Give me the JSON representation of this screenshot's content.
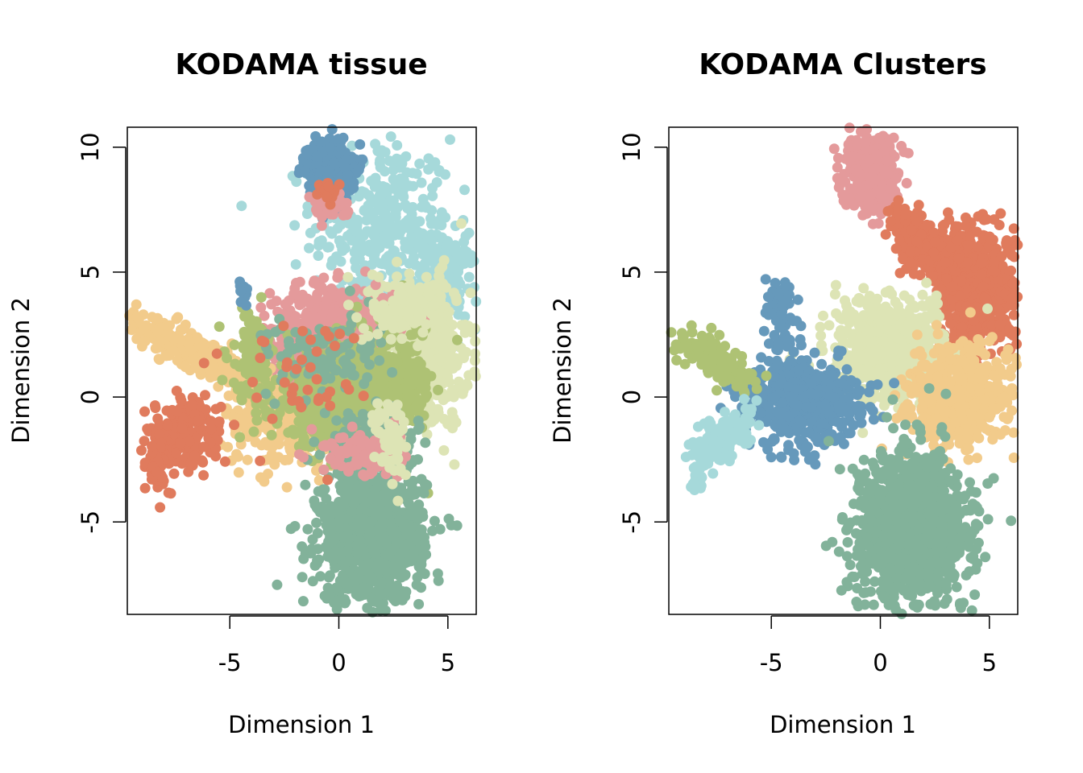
{
  "chart_data": [
    {
      "type": "scatter",
      "title": "KODAMA tissue",
      "xlabel": "Dimension 1",
      "ylabel": "Dimension 2",
      "xlim": [
        -9.7,
        6.3
      ],
      "ylim": [
        -8.7,
        10.8
      ],
      "xticks": [
        {
          "v": -5,
          "label": "-5"
        },
        {
          "v": 0,
          "label": "0"
        },
        {
          "v": 5,
          "label": "5"
        }
      ],
      "yticks": [
        {
          "v": -5,
          "label": "-5"
        },
        {
          "v": 0,
          "label": "0"
        },
        {
          "v": 5,
          "label": "5"
        },
        {
          "v": 10,
          "label": "10"
        }
      ],
      "palette": {
        "blue": "#6699bb",
        "lightblue": "#a6d9da",
        "pink": "#e49a9b",
        "orange": "#e07b5d",
        "peach": "#f2cb8b",
        "olive": "#aec274",
        "sage": "#82b29a",
        "cream": "#dde4b5"
      },
      "blobs": [
        {
          "color": "lightblue",
          "cx": 2.0,
          "cy": 6.8,
          "sx": 1.6,
          "sy": 1.8,
          "n": 360
        },
        {
          "color": "lightblue",
          "cx": 4.8,
          "cy": 4.6,
          "sx": 0.8,
          "sy": 0.9,
          "n": 160
        },
        {
          "color": "cream",
          "cx": 3.8,
          "cy": 1.8,
          "sx": 1.1,
          "sy": 1.5,
          "n": 480
        },
        {
          "color": "pink",
          "cx": -0.3,
          "cy": 2.7,
          "sx": 1.4,
          "sy": 0.9,
          "n": 460
        },
        {
          "color": "pink",
          "cx": -1.8,
          "cy": 0.6,
          "sx": 1.0,
          "sy": 0.9,
          "n": 120
        },
        {
          "color": "peach",
          "cx": -5.5,
          "cy": 1.3,
          "sx": 2.2,
          "sy": 0.35,
          "rot": -0.42,
          "n": 380
        },
        {
          "color": "peach",
          "cx": -2.5,
          "cy": -1.0,
          "sx": 1.4,
          "sy": 0.9,
          "n": 220
        },
        {
          "color": "olive",
          "cx": 0.0,
          "cy": 0.1,
          "sx": 1.5,
          "sy": 1.0,
          "n": 700
        },
        {
          "color": "olive",
          "cx": 2.6,
          "cy": 0.6,
          "sx": 0.9,
          "sy": 1.3,
          "n": 220
        },
        {
          "color": "olive",
          "cx": -4.0,
          "cy": 1.7,
          "sx": 0.5,
          "sy": 0.9,
          "n": 90
        },
        {
          "color": "orange",
          "cx": -7.2,
          "cy": -1.5,
          "sx": 0.8,
          "sy": 0.6,
          "rot": 0.7,
          "n": 240
        },
        {
          "color": "orange",
          "cx": -8.3,
          "cy": -2.8,
          "sx": 0.15,
          "sy": 0.5,
          "n": 40
        },
        {
          "color": "sage",
          "cx": 1.5,
          "cy": -5.6,
          "sx": 1.2,
          "sy": 1.3,
          "n": 900
        },
        {
          "color": "sage",
          "cx": 1.5,
          "cy": -2.0,
          "sx": 1.0,
          "sy": 0.7,
          "n": 220
        },
        {
          "color": "sage",
          "cx": -0.5,
          "cy": 1.6,
          "sx": 1.4,
          "sy": 0.8,
          "n": 110
        },
        {
          "color": "pink",
          "cx": 1.0,
          "cy": -2.3,
          "sx": 0.9,
          "sy": 0.5,
          "n": 100
        },
        {
          "color": "cream",
          "cx": 3.0,
          "cy": 3.5,
          "sx": 0.8,
          "sy": 0.6,
          "n": 120
        },
        {
          "color": "cream",
          "cx": 2.5,
          "cy": -1.8,
          "sx": 0.4,
          "sy": 1.0,
          "n": 60
        },
        {
          "color": "blue",
          "cx": -0.4,
          "cy": 9.1,
          "sx": 0.5,
          "sy": 0.55,
          "n": 420
        },
        {
          "color": "pink",
          "cx": -0.5,
          "cy": 7.8,
          "sx": 0.4,
          "sy": 0.3,
          "n": 70
        },
        {
          "color": "orange",
          "cx": -0.5,
          "cy": 8.2,
          "sx": 0.3,
          "sy": 0.25,
          "n": 18
        },
        {
          "color": "blue",
          "cx": -4.4,
          "cy": 4.2,
          "sx": 0.1,
          "sy": 0.3,
          "n": 14
        },
        {
          "color": "orange",
          "cx": -2.0,
          "cy": 0.8,
          "sx": 1.5,
          "sy": 1.2,
          "n": 40
        }
      ]
    },
    {
      "type": "scatter",
      "title": "KODAMA Clusters",
      "xlabel": "Dimension 1",
      "ylabel": "Dimension 2",
      "xlim": [
        -9.7,
        6.3
      ],
      "ylim": [
        -8.7,
        10.8
      ],
      "xticks": [
        {
          "v": -5,
          "label": "-5"
        },
        {
          "v": 0,
          "label": "0"
        },
        {
          "v": 5,
          "label": "5"
        }
      ],
      "yticks": [
        {
          "v": -5,
          "label": "-5"
        },
        {
          "v": 0,
          "label": "0"
        },
        {
          "v": 5,
          "label": "5"
        },
        {
          "v": 10,
          "label": "10"
        }
      ],
      "palette": {
        "blue": "#6699bb",
        "lightblue": "#a6d9da",
        "pink": "#e49a9b",
        "orange": "#e07b5d",
        "peach": "#f2cb8b",
        "olive": "#aec274",
        "sage": "#82b29a",
        "cream": "#dde4b5"
      },
      "blobs": [
        {
          "color": "pink",
          "cx": -0.4,
          "cy": 9.0,
          "sx": 0.55,
          "sy": 0.75,
          "n": 420
        },
        {
          "color": "orange",
          "cx": 1.2,
          "cy": 7.0,
          "sx": 0.4,
          "sy": 0.5,
          "n": 60
        },
        {
          "color": "orange",
          "cx": 4.4,
          "cy": 4.4,
          "sx": 0.9,
          "sy": 1.1,
          "n": 560
        },
        {
          "color": "orange",
          "cx": 2.6,
          "cy": 5.8,
          "sx": 0.8,
          "sy": 0.5,
          "n": 160
        },
        {
          "color": "cream",
          "cx": 0.5,
          "cy": 1.9,
          "sx": 1.3,
          "sy": 1.0,
          "n": 620
        },
        {
          "color": "peach",
          "cx": 3.5,
          "cy": 0.0,
          "sx": 1.2,
          "sy": 1.0,
          "n": 520
        },
        {
          "color": "blue",
          "cx": -3.6,
          "cy": -0.2,
          "sx": 1.3,
          "sy": 0.9,
          "n": 520
        },
        {
          "color": "blue",
          "cx": -4.5,
          "cy": 3.2,
          "sx": 0.35,
          "sy": 0.8,
          "n": 70
        },
        {
          "color": "olive",
          "cx": -7.5,
          "cy": 1.4,
          "sx": 1.0,
          "sy": 0.3,
          "rot": -0.5,
          "n": 200
        },
        {
          "color": "lightblue",
          "cx": -7.3,
          "cy": -1.7,
          "sx": 0.7,
          "sy": 0.4,
          "rot": 0.6,
          "n": 170
        },
        {
          "color": "lightblue",
          "cx": -8.4,
          "cy": -3.2,
          "sx": 0.15,
          "sy": 0.35,
          "n": 30
        },
        {
          "color": "sage",
          "cx": 1.5,
          "cy": -5.2,
          "sx": 1.3,
          "sy": 1.6,
          "n": 1100
        }
      ]
    }
  ]
}
